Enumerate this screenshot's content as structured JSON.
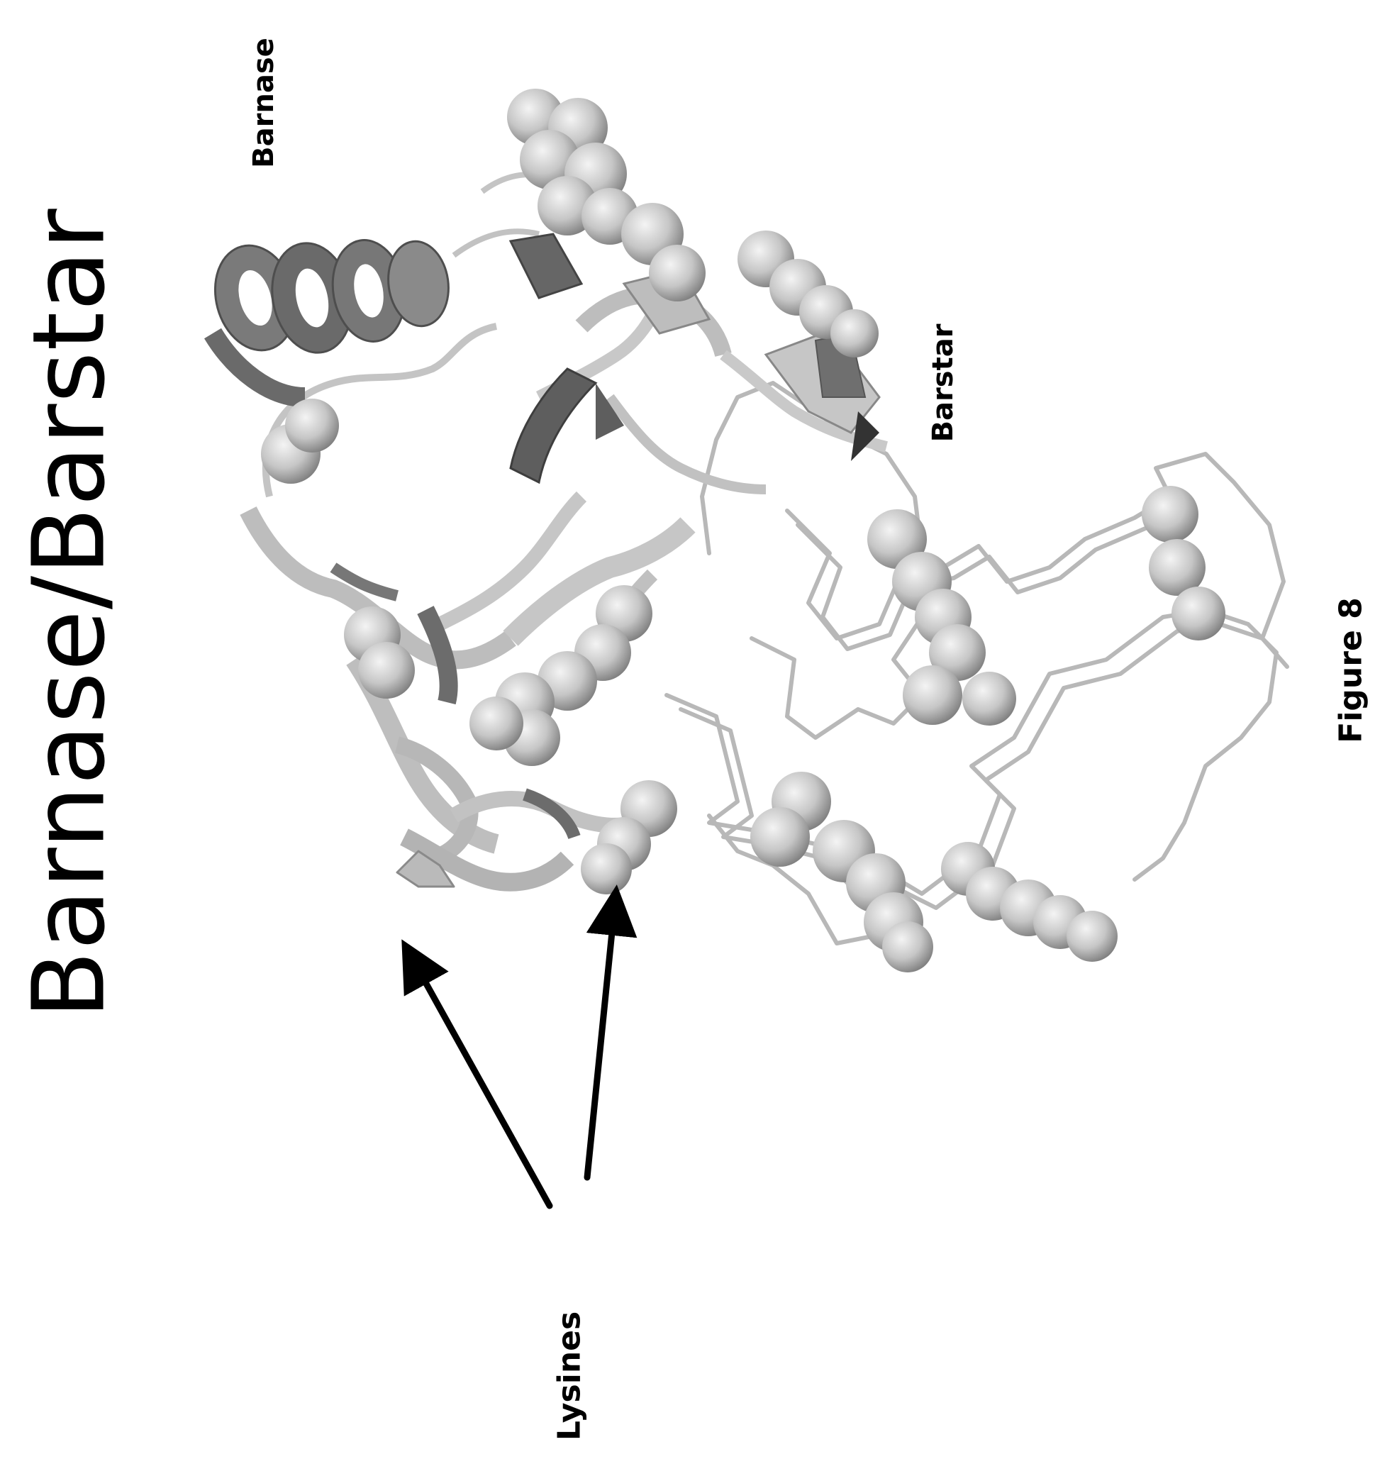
{
  "figure": {
    "title": "Barnase/Barstar",
    "labels": {
      "barnase": "Barnase",
      "barstar": "Barstar",
      "lysines": "Lysines"
    },
    "caption": "Figure 8"
  },
  "colors": {
    "ribbon_light": "#bdbdbd",
    "ribbon_dark": "#6e6e6e",
    "sphere": "#cfcfcf",
    "trace": "#b8b8b8",
    "arrow": "#000000"
  }
}
